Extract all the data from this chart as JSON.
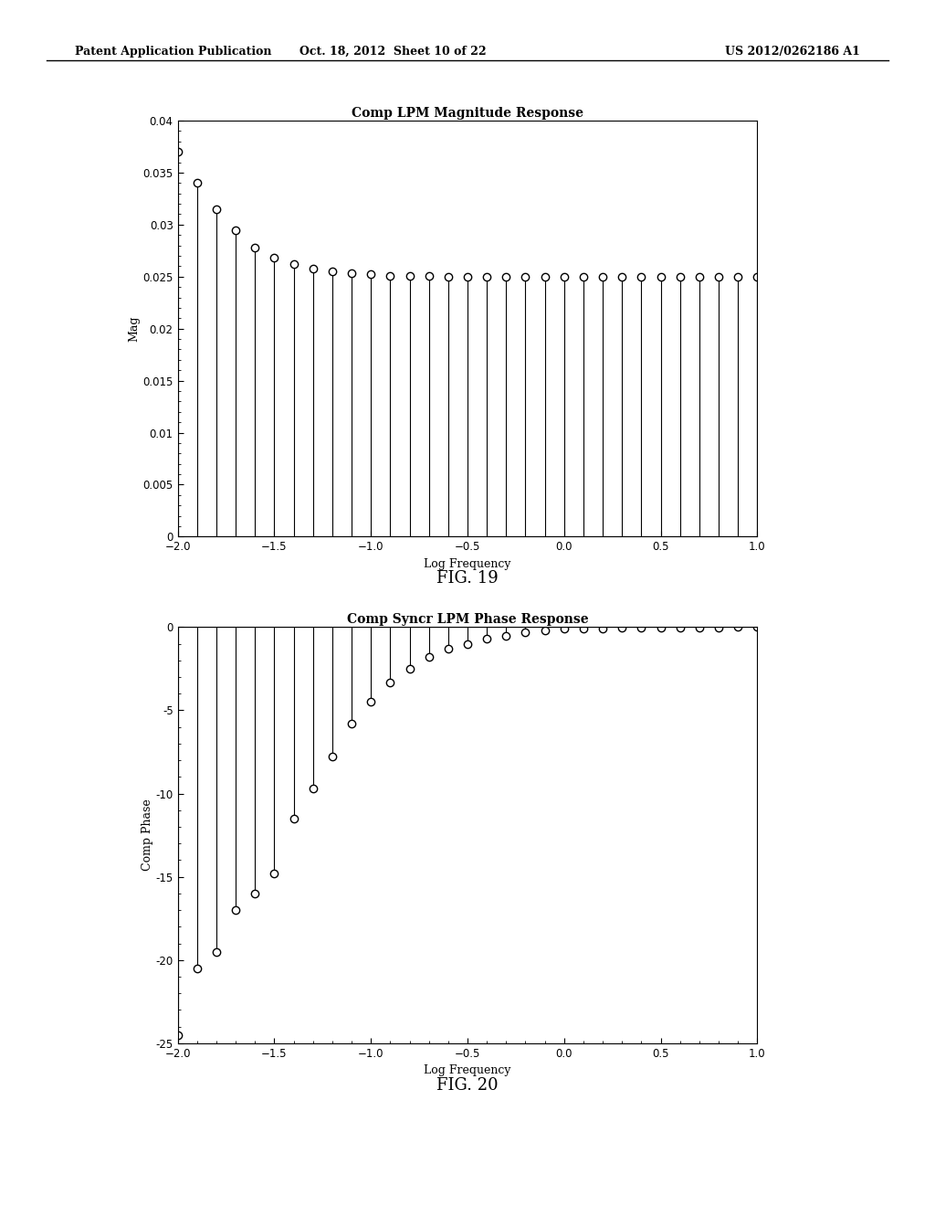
{
  "fig1": {
    "title": "Comp LPM Magnitude Response",
    "xlabel": "Log Frequency",
    "ylabel": "Mag",
    "xlim": [
      -2,
      1
    ],
    "ylim": [
      0,
      0.04
    ],
    "xticks": [
      -2,
      -1.5,
      -1,
      -0.5,
      0,
      0.5,
      1
    ],
    "yticks": [
      0,
      0.005,
      0.01,
      0.015,
      0.02,
      0.025,
      0.03,
      0.035,
      0.04
    ],
    "x_values": [
      -2.0,
      -1.9,
      -1.8,
      -1.7,
      -1.6,
      -1.5,
      -1.4,
      -1.3,
      -1.2,
      -1.1,
      -1.0,
      -0.9,
      -0.8,
      -0.7,
      -0.6,
      -0.5,
      -0.4,
      -0.3,
      -0.2,
      -0.1,
      0.0,
      0.1,
      0.2,
      0.3,
      0.4,
      0.5,
      0.6,
      0.7,
      0.8,
      0.9,
      1.0
    ],
    "y_values": [
      0.037,
      0.034,
      0.0315,
      0.0295,
      0.0278,
      0.0268,
      0.0262,
      0.0258,
      0.0255,
      0.0253,
      0.0252,
      0.0251,
      0.0251,
      0.0251,
      0.025,
      0.025,
      0.025,
      0.025,
      0.025,
      0.025,
      0.025,
      0.025,
      0.025,
      0.025,
      0.025,
      0.025,
      0.025,
      0.025,
      0.025,
      0.025,
      0.025
    ],
    "fig_caption": "FIG. 19"
  },
  "fig2": {
    "title": "Comp Syncr LPM Phase Response",
    "xlabel": "Log Frequency",
    "ylabel": "Comp Phase",
    "xlim": [
      -2,
      1
    ],
    "ylim": [
      -25,
      0
    ],
    "xticks": [
      -2,
      -1.5,
      -1,
      -0.5,
      0,
      0.5,
      1
    ],
    "yticks": [
      -25,
      -20,
      -15,
      -10,
      -5,
      0
    ],
    "x_values": [
      -2.0,
      -1.9,
      -1.8,
      -1.7,
      -1.6,
      -1.5,
      -1.4,
      -1.3,
      -1.2,
      -1.1,
      -1.0,
      -0.9,
      -0.8,
      -0.7,
      -0.6,
      -0.5,
      -0.4,
      -0.3,
      -0.2,
      -0.1,
      0.0,
      0.1,
      0.2,
      0.3,
      0.4,
      0.5,
      0.6,
      0.7,
      0.8,
      0.9,
      1.0
    ],
    "y_values": [
      -24.5,
      -20.5,
      -19.5,
      -17.0,
      -16.0,
      -14.8,
      -11.5,
      -9.7,
      -7.8,
      -5.8,
      -4.5,
      -3.3,
      -2.5,
      -1.8,
      -1.3,
      -1.0,
      -0.7,
      -0.5,
      -0.3,
      -0.2,
      -0.1,
      -0.1,
      -0.1,
      -0.05,
      -0.05,
      -0.02,
      -0.02,
      -0.01,
      -0.01,
      0.0,
      0.0
    ],
    "fig_caption": "FIG. 20"
  },
  "header_left": "Patent Application Publication",
  "header_mid": "Oct. 18, 2012  Sheet 10 of 22",
  "header_right": "US 2012/0262186 A1",
  "background_color": "#ffffff",
  "line_color": "#000000",
  "marker_color": "#ffffff",
  "marker_edge_color": "#000000"
}
